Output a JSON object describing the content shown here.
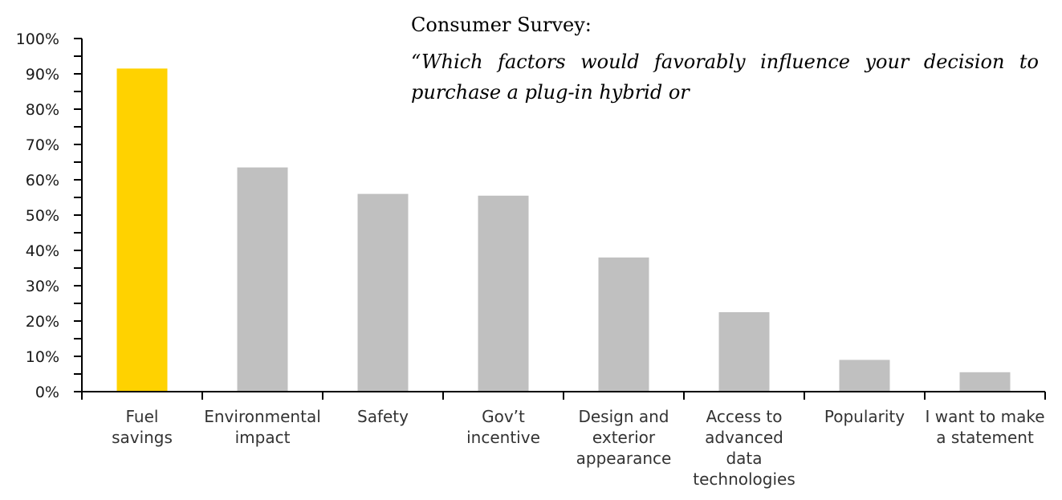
{
  "chart_data": {
    "type": "bar",
    "title": "Consumer Survey:",
    "subtitle": "“Which factors would favorably influence your decision to purchase a plug-in hybrid or",
    "xlabel": "",
    "ylabel": "",
    "ylim": [
      0,
      100
    ],
    "y_tick_values": [
      0,
      10,
      20,
      30,
      40,
      50,
      60,
      70,
      80,
      90,
      100
    ],
    "y_tick_labels": [
      "0%",
      "10%",
      "20%",
      "30%",
      "40%",
      "50%",
      "60%",
      "70%",
      "80%",
      "90%",
      "100%"
    ],
    "categories": [
      [
        "Fuel",
        "savings"
      ],
      [
        "Environmental",
        "impact"
      ],
      [
        "Safety"
      ],
      [
        "Gov’t",
        "incentive"
      ],
      [
        "Design and",
        "exterior",
        "appearance"
      ],
      [
        "Access to",
        "advanced",
        "data",
        "technologies"
      ],
      [
        "Popularity"
      ],
      [
        "I want to make",
        "a statement"
      ]
    ],
    "values": [
      91.5,
      63.5,
      56,
      55.5,
      38,
      22.5,
      9,
      5.5
    ],
    "bar_colors": [
      "#FFD200",
      "#C0C0C0",
      "#C0C0C0",
      "#C0C0C0",
      "#C0C0C0",
      "#C0C0C0",
      "#C0C0C0",
      "#C0C0C0"
    ],
    "axis_color": "#000000",
    "grid": false,
    "legend": "none"
  }
}
